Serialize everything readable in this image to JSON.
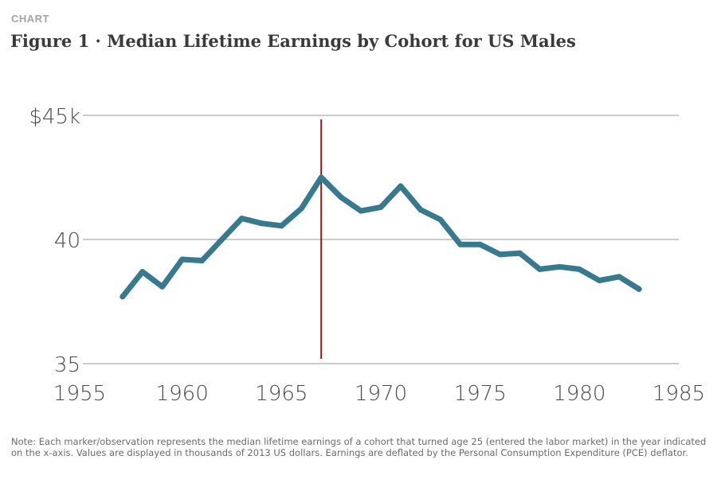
{
  "header": {
    "kicker": "CHART",
    "title": "Figure 1 · Median Lifetime Earnings by Cohort for US Males"
  },
  "note": "Note: Each marker/observation represents the median lifetime earnings of a cohort that turned age 25 (entered the labor market) in the year indicated on the x-axis. Values are displayed in thousands of 2013 US dollars. Earnings are deflated by the Personal Consumption Expenditure (PCE) deflator.",
  "colors": {
    "line": "#377a8f",
    "marker_line": "#8b1a1a",
    "grid": "#9a9a9a",
    "text": "#4a4a4a"
  },
  "chart_data": {
    "type": "line",
    "title": "Figure 1 · Median Lifetime Earnings by Cohort for US Males",
    "xlabel": "",
    "ylabel": "",
    "xlim": [
      1955,
      1985
    ],
    "ylim": [
      35,
      45
    ],
    "x_ticks": [
      1955,
      1960,
      1965,
      1970,
      1975,
      1980,
      1985
    ],
    "x_tick_labels": [
      "1955",
      "1960",
      "1965",
      "1970",
      "1975",
      "1980",
      "1985"
    ],
    "y_ticks": [
      35,
      40,
      45
    ],
    "y_tick_labels": [
      "35",
      "40",
      "$45k"
    ],
    "grid": "horizontal",
    "vertical_reference_line": 1967,
    "series": [
      {
        "name": "Median lifetime earnings",
        "x": [
          1957,
          1958,
          1959,
          1960,
          1961,
          1962,
          1963,
          1964,
          1965,
          1966,
          1967,
          1968,
          1969,
          1970,
          1971,
          1972,
          1973,
          1974,
          1975,
          1976,
          1977,
          1978,
          1979,
          1980,
          1981,
          1982,
          1983
        ],
        "values": [
          37.7,
          38.7,
          38.1,
          39.2,
          39.15,
          40.0,
          40.85,
          40.65,
          40.55,
          41.25,
          42.5,
          41.7,
          41.15,
          41.3,
          42.15,
          41.2,
          40.8,
          39.8,
          39.8,
          39.4,
          39.45,
          38.8,
          38.9,
          38.8,
          38.35,
          38.5,
          38.0
        ]
      }
    ]
  }
}
